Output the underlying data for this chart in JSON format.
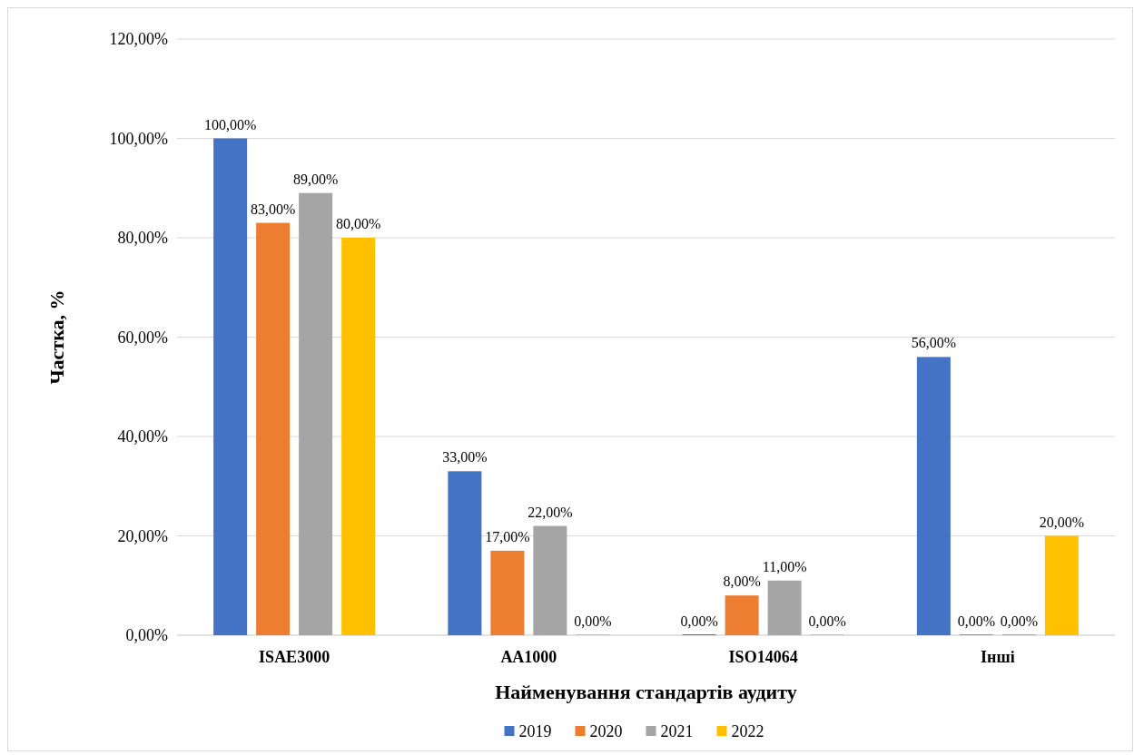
{
  "chart_data": {
    "type": "bar",
    "xlabel": "Найменування стандартів аудиту",
    "ylabel": "Частка, %",
    "categories": [
      "ISAE3000",
      "AA1000",
      "ISO14064",
      "Інші"
    ],
    "series": [
      {
        "name": "2019",
        "color": "#4472c4",
        "values": [
          100,
          33,
          0,
          56
        ],
        "value_labels": [
          "100,00%",
          "33,00%",
          "0,00%",
          "56,00%"
        ]
      },
      {
        "name": "2020",
        "color": "#ed7d31",
        "values": [
          83,
          17,
          8,
          0
        ],
        "value_labels": [
          "83,00%",
          "17,00%",
          "8,00%",
          "0,00%"
        ]
      },
      {
        "name": "2021",
        "color": "#a5a5a5",
        "values": [
          89,
          22,
          11,
          0
        ],
        "value_labels": [
          "89,00%",
          "22,00%",
          "11,00%",
          "0,00%"
        ]
      },
      {
        "name": "2022",
        "color": "#ffc000",
        "values": [
          80,
          0,
          0,
          20
        ],
        "value_labels": [
          "80,00%",
          "0,00%",
          "0,00%",
          "20,00%"
        ]
      }
    ],
    "ylim": [
      0,
      120
    ],
    "yticks": [
      {
        "value": 0,
        "label": "0,00%"
      },
      {
        "value": 20,
        "label": "20,00%"
      },
      {
        "value": 40,
        "label": "40,00%"
      },
      {
        "value": 60,
        "label": "60,00%"
      },
      {
        "value": 80,
        "label": "80,00%"
      },
      {
        "value": 100,
        "label": "100,00%"
      },
      {
        "value": 120,
        "label": "120,00%"
      }
    ],
    "grid": "y",
    "legend": "bottom"
  }
}
